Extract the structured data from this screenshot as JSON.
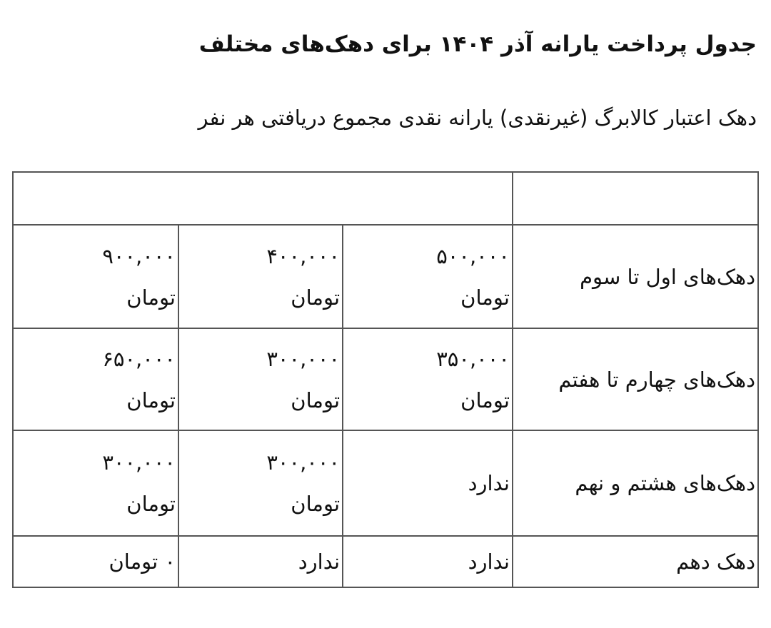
{
  "title": "جدول پرداخت یارانه آذر ۱۴۰۴ برای دهک‌های مختلف",
  "subtitle": "دهک اعتبار کالابرگ (غیرنقدی) یارانه نقدی مجموع دریافتی هر نفر",
  "table": {
    "rows": [
      {
        "decile": "دهک‌های اول تا سوم",
        "c2": {
          "num": "۵۰۰,۰۰۰",
          "cur": "تومان"
        },
        "c3": {
          "num": "۴۰۰,۰۰۰",
          "cur": "تومان"
        },
        "c4": {
          "num": "۹۰۰,۰۰۰",
          "cur": "تومان"
        }
      },
      {
        "decile": "دهک‌های چهارم تا هفتم",
        "c2": {
          "num": "۳۵۰,۰۰۰",
          "cur": "تومان"
        },
        "c3": {
          "num": "۳۰۰,۰۰۰",
          "cur": "تومان"
        },
        "c4": {
          "num": "۶۵۰,۰۰۰",
          "cur": "تومان"
        }
      },
      {
        "decile": "دهک‌های هشتم و نهم",
        "c2": "ندارد",
        "c3": {
          "num": "۳۰۰,۰۰۰",
          "cur": "تومان"
        },
        "c4": {
          "num": "۳۰۰,۰۰۰",
          "cur": "تومان"
        }
      },
      {
        "decile": "دهک دهم",
        "c2": "ندارد",
        "c3": "ندارد",
        "c4": "۰ تومان"
      }
    ]
  }
}
